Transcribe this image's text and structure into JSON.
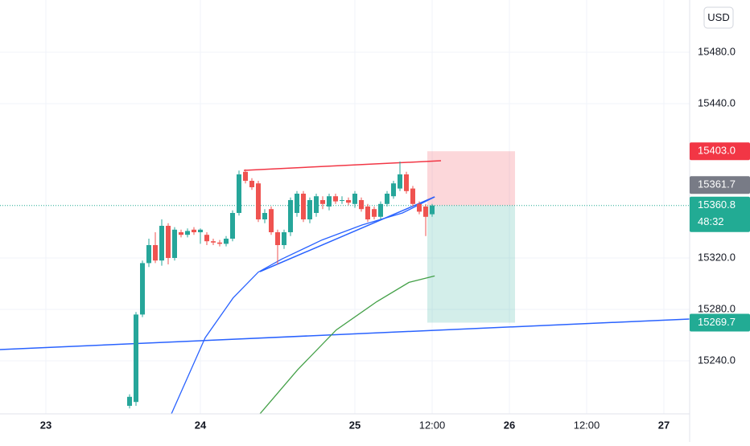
{
  "chart_data": {
    "type": "candlestick",
    "currency": "USD",
    "x": [
      13,
      14,
      15,
      16,
      17,
      18,
      19,
      20,
      21,
      22,
      23,
      24,
      25,
      26,
      27,
      28,
      29,
      30,
      31,
      32,
      33,
      34,
      35,
      36,
      37,
      38,
      39,
      40,
      41,
      42,
      43,
      44,
      45,
      46,
      47,
      48,
      49,
      50,
      51,
      52,
      53,
      54,
      55,
      56,
      57,
      58,
      59,
      60
    ],
    "open": [
      15205,
      15208,
      15276,
      15316,
      15330,
      15318,
      15345,
      15320,
      15340,
      15338,
      15342,
      15340,
      15338,
      15333,
      15332,
      15331,
      15335,
      15355,
      15387,
      15380,
      15378,
      15350,
      15358,
      15340,
      15330,
      15340,
      15355,
      15370,
      15350,
      15355,
      15365,
      15360,
      15368,
      15365,
      15365,
      15362,
      15365,
      15360,
      15358,
      15352,
      15362,
      15368,
      15374,
      15385,
      15374,
      15362,
      15360,
      15354
    ],
    "high": [
      15214,
      15278,
      15318,
      15335,
      15340,
      15350,
      15347,
      15344,
      15342,
      15343,
      15344,
      15343,
      15340,
      15335,
      15334,
      15337,
      15357,
      15388,
      15389,
      15382,
      15380,
      15358,
      15360,
      15342,
      15342,
      15367,
      15372,
      15372,
      15367,
      15370,
      15368,
      15370,
      15370,
      15368,
      15367,
      15372,
      15367,
      15362,
      15360,
      15364,
      15372,
      15380,
      15395,
      15387,
      15376,
      15364,
      15362,
      15362
    ],
    "low": [
      15203,
      15205,
      15274,
      15313,
      15316,
      15314,
      15315,
      15318,
      15336,
      15336,
      15338,
      15331,
      15330,
      15330,
      15329,
      15329,
      15333,
      15353,
      15378,
      15373,
      15348,
      15347,
      15338,
      15315,
      15327,
      15337,
      15352,
      15348,
      15347,
      15352,
      15358,
      15357,
      15362,
      15362,
      15361,
      15359,
      15356,
      15348,
      15350,
      15350,
      15360,
      15366,
      15372,
      15370,
      15360,
      15354,
      15337,
      15352
    ],
    "close": [
      15212,
      15276,
      15316,
      15330,
      15318,
      15345,
      15320,
      15342,
      15338,
      15341,
      15340,
      15342,
      15333,
      15332,
      15331,
      15335,
      15355,
      15385,
      15380,
      15375,
      15350,
      15355,
      15340,
      15330,
      15340,
      15365,
      15370,
      15350,
      15365,
      15368,
      15362,
      15368,
      15364,
      15365,
      15363,
      15370,
      15358,
      15350,
      15352,
      15362,
      15370,
      15378,
      15385,
      15372,
      15362,
      15356,
      15352,
      15360.8
    ],
    "overlays": [
      {
        "color": "#2962ff",
        "x": [
          19.5,
          24.75,
          29.1,
          33,
          36.6,
          42.9,
          49.1,
          55.4,
          60.4
        ],
        "values": [
          15198.75,
          15258,
          15289,
          15309,
          15319,
          15334,
          15345.6,
          15355,
          15367.5
        ]
      },
      {
        "color": "#43a047",
        "x": [
          33.25,
          39.1,
          45.1,
          51.4,
          56.4,
          60.4
        ],
        "values": [
          15198.75,
          15233,
          15264,
          15286,
          15301,
          15306
        ]
      }
    ],
    "xlim": [
      -7.125,
      100
    ],
    "ylim": [
      15198.75,
      15520.625
    ],
    "xticks": [
      {
        "value": 0,
        "label": "23"
      },
      {
        "value": 24,
        "label": "24"
      },
      {
        "value": 48,
        "label": "25"
      },
      {
        "value": 60,
        "label": "12:00"
      },
      {
        "value": 72,
        "label": "26"
      },
      {
        "value": 84,
        "label": "12:00"
      },
      {
        "value": 96,
        "label": "27"
      }
    ],
    "yticks": [
      {
        "value": 15480,
        "label": "15480.0"
      },
      {
        "value": 15440,
        "label": "15440.0"
      },
      {
        "value": 15320,
        "label": "15320.0"
      },
      {
        "value": 15280,
        "label": "15280.0"
      },
      {
        "value": 15240,
        "label": "15240.0"
      }
    ],
    "price_labels": [
      {
        "value": 15403.0,
        "label": "15403.0",
        "color": "#f23645"
      },
      {
        "value": 15361.7,
        "label": "15361.7",
        "color": "#787b86"
      },
      {
        "value": 15360.8,
        "label": "15360.8",
        "color": "#22ab94"
      },
      {
        "value": 15269.7,
        "label": "15269.7",
        "color": "#22ab94"
      }
    ],
    "countdown": "48:32",
    "up_color": "#26a69a",
    "down_color": "#ef5350"
  }
}
